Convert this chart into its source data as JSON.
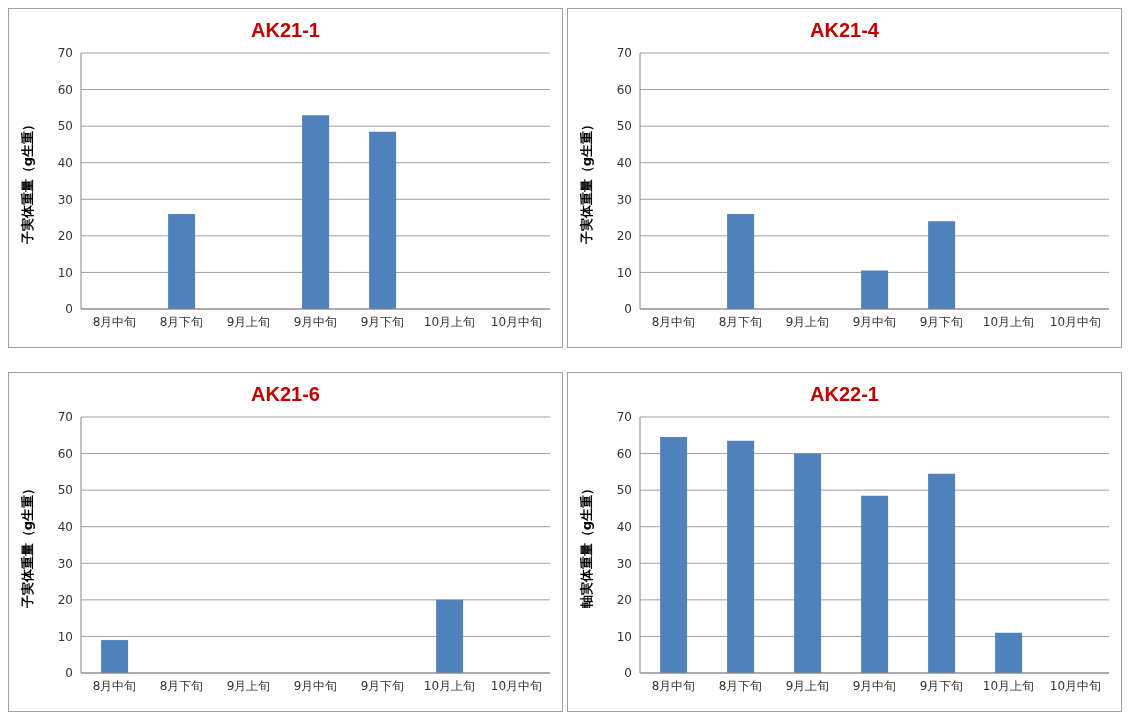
{
  "chart_data": [
    {
      "type": "bar",
      "title": "AK21-1",
      "ylabel": "子実体重量（g生重）",
      "categories": [
        "8月中旬",
        "8月下旬",
        "9月上旬",
        "9月中旬",
        "9月下旬",
        "10月上旬",
        "10月中旬"
      ],
      "values": [
        0,
        26,
        0,
        53,
        48.5,
        0,
        0
      ],
      "color": "#4f81bd",
      "ylim": [
        0,
        70
      ],
      "yticks": [
        0,
        10,
        20,
        30,
        40,
        50,
        60,
        70
      ],
      "grid": "y"
    },
    {
      "type": "bar",
      "title": "AK21-4",
      "ylabel": "子実体重量（g生重）",
      "categories": [
        "8月中旬",
        "8月下旬",
        "9月上旬",
        "9月中旬",
        "9月下旬",
        "10月上旬",
        "10月中旬"
      ],
      "values": [
        0,
        26,
        0,
        10.5,
        24,
        0,
        0
      ],
      "color": "#4f81bd",
      "ylim": [
        0,
        70
      ],
      "yticks": [
        0,
        10,
        20,
        30,
        40,
        50,
        60,
        70
      ],
      "grid": "y"
    },
    {
      "type": "bar",
      "title": "AK21-6",
      "ylabel": "子実体重量（g生重）",
      "categories": [
        "8月中旬",
        "8月下旬",
        "9月上旬",
        "9月中旬",
        "9月下旬",
        "10月上旬",
        "10月中旬"
      ],
      "values": [
        9,
        0,
        0,
        0,
        0,
        20,
        0
      ],
      "color": "#4f81bd",
      "ylim": [
        0,
        70
      ],
      "yticks": [
        0,
        10,
        20,
        30,
        40,
        50,
        60,
        70
      ],
      "grid": "y"
    },
    {
      "type": "bar",
      "title": "AK22-1",
      "ylabel": "軸実体重量（g生重）",
      "categories": [
        "8月中旬",
        "8月下旬",
        "9月上旬",
        "9月中旬",
        "9月下旬",
        "10月上旬",
        "10月中旬"
      ],
      "values": [
        64.5,
        63.5,
        60,
        48.5,
        54.5,
        11,
        0
      ],
      "color": "#4f81bd",
      "ylim": [
        0,
        70
      ],
      "yticks": [
        0,
        10,
        20,
        30,
        40,
        50,
        60,
        70
      ],
      "grid": "y"
    }
  ]
}
